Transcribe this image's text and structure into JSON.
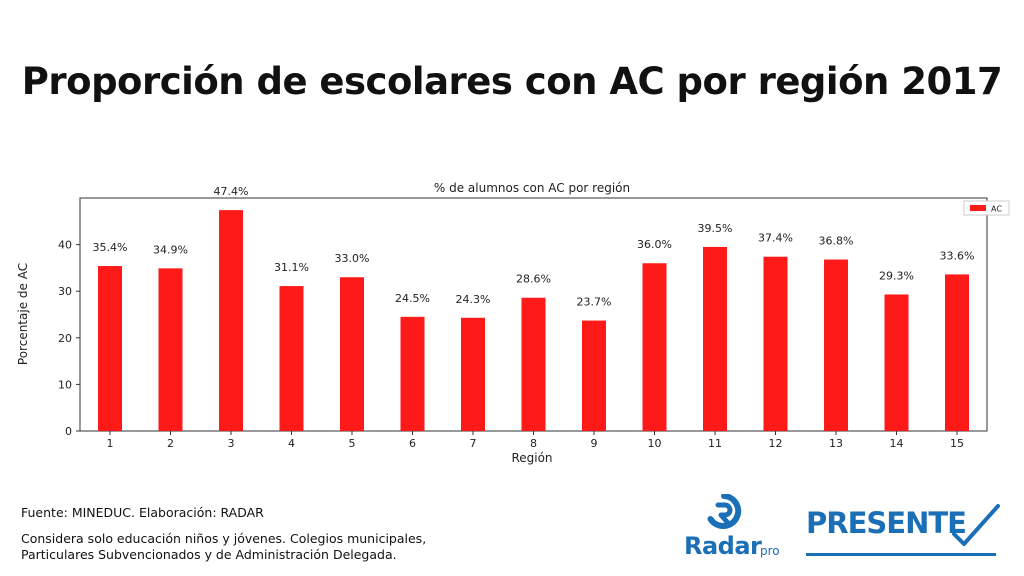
{
  "slide": {
    "title": "Proporción de escolares con AC por región 2017"
  },
  "footer": {
    "source": "Fuente: MINEDUC. Elaboración: RADAR",
    "note_line1": "Considera solo educación niños y jóvenes. Colegios municipales,",
    "note_line2": "Particulares Subvencionados y de Administración Delegada."
  },
  "logos": {
    "radar": "Radar",
    "radar_suffix": "pro",
    "presente": "PRESENTE"
  },
  "colors": {
    "bar": "#ff1a1a",
    "brand_blue": "#1b6fb6"
  },
  "chart_data": {
    "type": "bar",
    "title": "% de alumnos con AC por región",
    "xlabel": "Región",
    "ylabel": "Porcentaje de AC",
    "categories": [
      "1",
      "2",
      "3",
      "4",
      "5",
      "6",
      "7",
      "8",
      "9",
      "10",
      "11",
      "12",
      "13",
      "14",
      "15"
    ],
    "series": [
      {
        "name": "AC",
        "values": [
          35.4,
          34.9,
          47.4,
          31.1,
          33.0,
          24.5,
          24.3,
          28.6,
          23.7,
          36.0,
          39.5,
          37.4,
          36.8,
          29.3,
          33.6
        ],
        "labels": [
          "35.4%",
          "34.9%",
          "47.4%",
          "31.1%",
          "33.0%",
          "24.5%",
          "24.3%",
          "28.6%",
          "23.7%",
          "36.0%",
          "39.5%",
          "37.4%",
          "36.8%",
          "29.3%",
          "33.6%"
        ]
      }
    ],
    "yticks": [
      0,
      10,
      20,
      30,
      40
    ],
    "ylim": [
      0,
      50
    ],
    "grid": false,
    "legend": "top-right"
  }
}
